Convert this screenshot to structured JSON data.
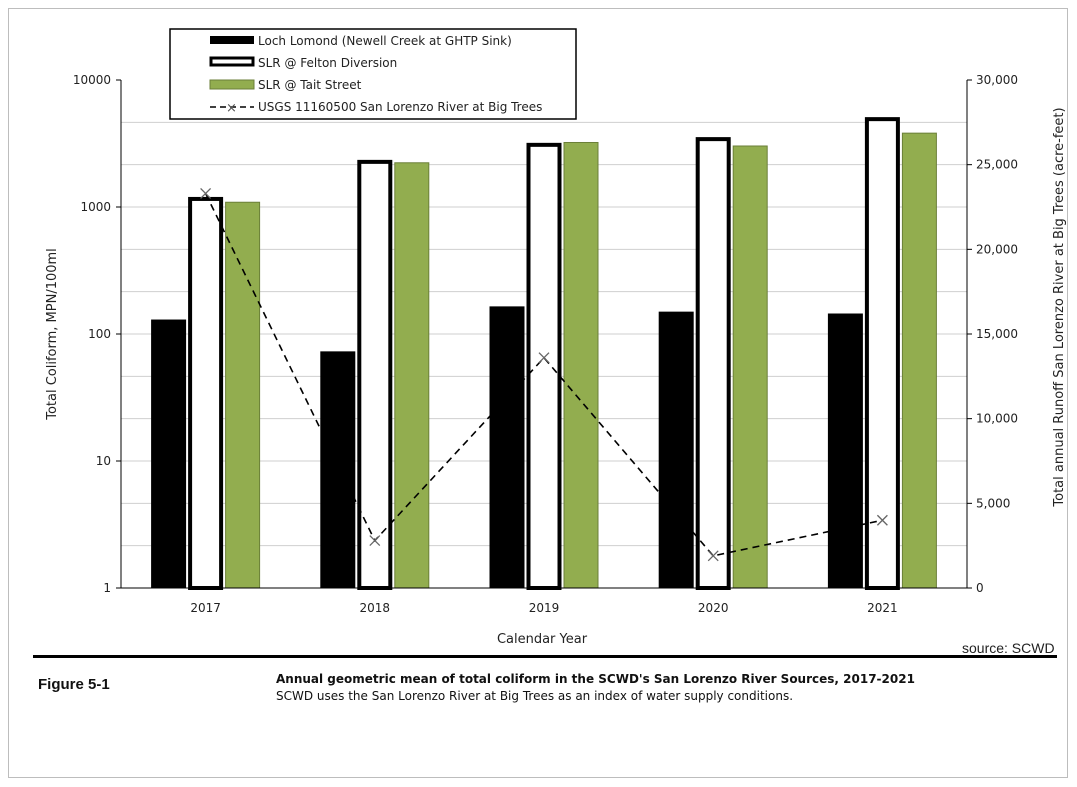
{
  "chart_data": {
    "type": "bar",
    "categories": [
      "2017",
      "2018",
      "2019",
      "2020",
      "2021"
    ],
    "series": [
      {
        "name": "Loch Lomond (Newell Creek at GHTP Sink)",
        "values": [
          130,
          73,
          165,
          150,
          145
        ],
        "style": "solid-black",
        "color": "#000000"
      },
      {
        "name": "SLR @ Felton Diversion",
        "values": [
          1200,
          2350,
          3200,
          3550,
          5100
        ],
        "style": "white-outlined",
        "color": "#ffffff"
      },
      {
        "name": "SLR @ Tait Street",
        "values": [
          1100,
          2250,
          3250,
          3050,
          3850
        ],
        "style": "green",
        "color": "#92ad4f"
      }
    ],
    "line_series": {
      "name": "USGS 11160500 San Lorenzo River at Big Trees",
      "axis": "right",
      "values": [
        23300,
        2800,
        13600,
        1900,
        4000
      ],
      "style": "dashed-black-x"
    },
    "left_axis": {
      "label": "Total Coliform, MPN/100ml",
      "scale": "log",
      "ylim": [
        1,
        10000
      ],
      "ticks": [
        "1",
        "10",
        "100",
        "1000",
        "10000"
      ]
    },
    "right_axis": {
      "label": "Total annual Runoff San Lorenzo River at Big Trees (acre-feet)",
      "ylim": [
        0,
        30000
      ],
      "ticks": [
        "0",
        "5,000",
        "10,000",
        "15,000",
        "20,000",
        "25,000",
        "30,000"
      ]
    },
    "xlabel": "Calendar Year",
    "grid": "horizontal",
    "legend_position": "top-left"
  },
  "caption": {
    "source": "source: SCWD",
    "figure_label": "Figure 5-1",
    "title": "Annual geometric mean of total coliform in the SCWD's San Lorenzo River Sources, 2017-2021",
    "subtitle": "SCWD uses the San Lorenzo River at Big Trees as an index of water supply conditions."
  }
}
